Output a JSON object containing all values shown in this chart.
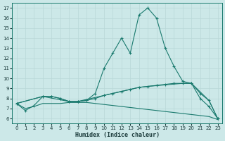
{
  "xlabel": "Humidex (Indice chaleur)",
  "bg_color": "#cce8e8",
  "line_color": "#1a7a6e",
  "grid_color": "#b8d8d8",
  "xlim": [
    -0.5,
    23.5
  ],
  "ylim": [
    5.5,
    17.5
  ],
  "xticks": [
    0,
    1,
    2,
    3,
    4,
    5,
    6,
    7,
    8,
    9,
    10,
    11,
    12,
    13,
    14,
    15,
    16,
    17,
    18,
    19,
    20,
    21,
    22,
    23
  ],
  "yticks": [
    6,
    7,
    8,
    9,
    10,
    11,
    12,
    13,
    14,
    15,
    16,
    17
  ],
  "curve1_x": [
    0,
    1,
    2,
    3,
    4,
    5,
    6,
    7,
    8,
    9,
    10,
    11,
    12,
    13,
    14,
    15,
    16,
    17,
    18,
    19,
    20,
    21,
    22,
    23
  ],
  "curve1_y": [
    7.5,
    6.8,
    7.3,
    8.2,
    8.2,
    8.0,
    7.7,
    7.7,
    7.8,
    8.5,
    11.0,
    12.5,
    14.0,
    12.5,
    16.3,
    17.0,
    16.0,
    13.0,
    11.2,
    9.7,
    9.5,
    8.0,
    7.2,
    6.0
  ],
  "curve2_x": [
    0,
    3,
    4,
    5,
    6,
    7,
    8,
    9,
    10,
    11,
    12,
    13,
    14,
    15,
    16,
    17,
    18,
    19,
    20,
    21,
    22,
    23
  ],
  "curve2_y": [
    7.5,
    8.2,
    8.2,
    8.0,
    7.7,
    7.7,
    7.8,
    8.0,
    8.3,
    8.5,
    8.7,
    8.9,
    9.1,
    9.2,
    9.3,
    9.4,
    9.5,
    9.5,
    9.5,
    8.5,
    7.8,
    6.0
  ],
  "curve3_x": [
    0,
    1,
    2,
    3,
    4,
    5,
    6,
    7,
    8,
    9,
    10,
    11,
    12,
    13,
    14,
    15,
    16,
    17,
    18,
    19,
    20,
    21,
    22,
    23
  ],
  "curve3_y": [
    7.5,
    7.0,
    7.2,
    7.5,
    7.5,
    7.5,
    7.6,
    7.6,
    7.6,
    7.5,
    7.4,
    7.3,
    7.2,
    7.1,
    7.0,
    6.9,
    6.8,
    6.7,
    6.6,
    6.5,
    6.4,
    6.3,
    6.2,
    5.9
  ],
  "curve4_x": [
    0,
    3,
    6,
    7,
    14,
    15,
    19,
    20,
    22,
    23
  ],
  "curve4_y": [
    7.5,
    8.2,
    7.7,
    7.7,
    9.1,
    9.2,
    9.5,
    9.5,
    7.8,
    6.0
  ]
}
